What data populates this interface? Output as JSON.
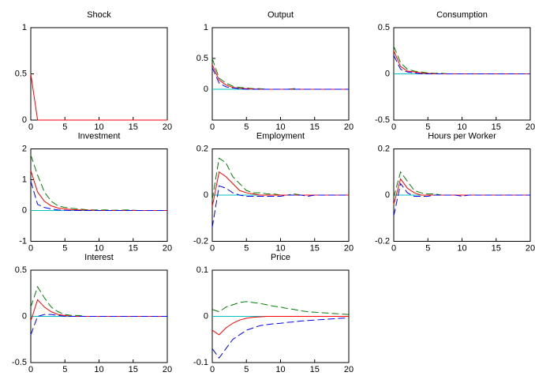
{
  "chart_data": [
    {
      "type": "line",
      "title": "Shock",
      "x": [
        0,
        1,
        2,
        3,
        4,
        5,
        6,
        7,
        8,
        9,
        10,
        11,
        12,
        13,
        14,
        15,
        16,
        17,
        18,
        19,
        20
      ],
      "xlim": [
        0,
        20
      ],
      "xticks": [
        0,
        5,
        10,
        15,
        20
      ],
      "ylim": [
        0,
        1
      ],
      "yticks": [
        0,
        0.5,
        1
      ],
      "series": [
        {
          "color": "#ff0000",
          "dash": false,
          "values": [
            0.5,
            0,
            0,
            0,
            0,
            0,
            0,
            0,
            0,
            0,
            0,
            0,
            0,
            0,
            0,
            0,
            0,
            0,
            0,
            0,
            0
          ]
        }
      ]
    },
    {
      "type": "line",
      "title": "Output",
      "x": [
        0,
        1,
        2,
        3,
        4,
        5,
        6,
        7,
        8,
        9,
        10,
        11,
        12,
        13,
        14,
        15,
        16,
        17,
        18,
        19,
        20
      ],
      "xlim": [
        0,
        20
      ],
      "xticks": [
        0,
        5,
        10,
        15,
        20
      ],
      "ylim": [
        -0.5,
        1
      ],
      "yticks": [
        0,
        0.5,
        1
      ],
      "hline": 0,
      "hline_color": "#00bfbf",
      "series": [
        {
          "color": "#007f00",
          "dash": true,
          "values": [
            0.5,
            0.18,
            0.1,
            0.05,
            0.03,
            0.02,
            0.01,
            0.01,
            0,
            0,
            0,
            0,
            0.01,
            0,
            0,
            0,
            0,
            0,
            0,
            0,
            0
          ]
        },
        {
          "color": "#ff0000",
          "dash": false,
          "values": [
            0.4,
            0.15,
            0.07,
            0.03,
            0.015,
            0.01,
            0.005,
            0,
            0,
            0,
            0,
            0,
            0,
            0,
            0,
            0,
            0,
            0,
            0,
            0,
            0
          ]
        },
        {
          "color": "#0000ff",
          "dash": true,
          "values": [
            0.35,
            0.1,
            0.04,
            0.02,
            0.01,
            0,
            0,
            0,
            0,
            0,
            0,
            0,
            0,
            0,
            0,
            0,
            0,
            0,
            0,
            0,
            0
          ]
        }
      ]
    },
    {
      "type": "line",
      "title": "Consumption",
      "x": [
        0,
        1,
        2,
        3,
        4,
        5,
        6,
        7,
        8,
        9,
        10,
        11,
        12,
        13,
        14,
        15,
        16,
        17,
        18,
        19,
        20
      ],
      "xlim": [
        0,
        20
      ],
      "xticks": [
        0,
        5,
        10,
        15,
        20
      ],
      "ylim": [
        -0.5,
        0.5
      ],
      "yticks": [
        -0.5,
        0,
        0.5
      ],
      "hline": 0,
      "hline_color": "#00bfbf",
      "series": [
        {
          "color": "#007f00",
          "dash": true,
          "values": [
            0.3,
            0.12,
            0.05,
            0.03,
            0.02,
            0.01,
            0.005,
            0.005,
            0,
            0,
            0,
            0,
            0,
            0,
            0,
            0,
            0,
            0,
            0,
            0,
            0
          ]
        },
        {
          "color": "#ff0000",
          "dash": false,
          "values": [
            0.25,
            0.08,
            0.03,
            0.02,
            0.01,
            0.005,
            0,
            0,
            0,
            0,
            0,
            0,
            0,
            0,
            0,
            0,
            0,
            0,
            0,
            0,
            0
          ]
        },
        {
          "color": "#0000ff",
          "dash": true,
          "values": [
            0.2,
            0.05,
            0.02,
            0.01,
            0,
            0,
            0,
            0,
            0,
            0,
            0,
            0,
            0,
            0,
            0,
            0,
            0,
            0,
            0,
            0,
            0
          ]
        }
      ]
    },
    {
      "type": "line",
      "title": "Investment",
      "x": [
        0,
        1,
        2,
        3,
        4,
        5,
        6,
        7,
        8,
        9,
        10,
        11,
        12,
        13,
        14,
        15,
        16,
        17,
        18,
        19,
        20
      ],
      "xlim": [
        0,
        20
      ],
      "xticks": [
        0,
        5,
        10,
        15,
        20
      ],
      "ylim": [
        -1,
        2
      ],
      "yticks": [
        -1,
        0,
        1,
        2
      ],
      "hline": 0,
      "hline_color": "#00bfbf",
      "series": [
        {
          "color": "#007f00",
          "dash": true,
          "values": [
            1.8,
            1.15,
            0.6,
            0.3,
            0.15,
            0.1,
            0.07,
            0.05,
            0.03,
            0.02,
            0.02,
            0.02,
            0.01,
            0.01,
            0.02,
            0.01,
            0,
            0,
            0,
            0,
            0
          ]
        },
        {
          "color": "#ff0000",
          "dash": false,
          "values": [
            1.3,
            0.6,
            0.3,
            0.15,
            0.08,
            0.05,
            0.03,
            0.02,
            0.01,
            0.01,
            0,
            0,
            0,
            0,
            0,
            0,
            0,
            0,
            0,
            0,
            0
          ]
        },
        {
          "color": "#0000ff",
          "dash": true,
          "values": [
            0.95,
            0.2,
            0.1,
            0.05,
            0.02,
            0.01,
            0,
            0,
            0,
            0,
            0,
            0,
            0,
            0,
            0,
            0,
            0,
            0,
            0,
            0,
            0
          ]
        }
      ]
    },
    {
      "type": "line",
      "title": "Employment",
      "x": [
        0,
        1,
        2,
        3,
        4,
        5,
        6,
        7,
        8,
        9,
        10,
        11,
        12,
        13,
        14,
        15,
        16,
        17,
        18,
        19,
        20
      ],
      "xlim": [
        0,
        20
      ],
      "xticks": [
        0,
        5,
        10,
        15,
        20
      ],
      "ylim": [
        -0.2,
        0.2
      ],
      "yticks": [
        -0.2,
        0,
        0.2
      ],
      "hline": 0,
      "hline_color": "#00bfbf",
      "series": [
        {
          "color": "#007f00",
          "dash": true,
          "values": [
            -0.02,
            0.16,
            0.14,
            0.08,
            0.05,
            0.02,
            0.01,
            0.01,
            0.005,
            0.005,
            0,
            0,
            0.005,
            0,
            0,
            0,
            0,
            0,
            0,
            0,
            0
          ]
        },
        {
          "color": "#ff0000",
          "dash": false,
          "values": [
            -0.05,
            0.1,
            0.08,
            0.05,
            0.02,
            0.01,
            0.005,
            0,
            0,
            0,
            0,
            0,
            0,
            0,
            0,
            0,
            0,
            0,
            0,
            0,
            0
          ]
        },
        {
          "color": "#0000ff",
          "dash": true,
          "values": [
            -0.14,
            0.04,
            0.03,
            0.01,
            0,
            -0.005,
            -0.005,
            -0.005,
            -0.005,
            -0.005,
            -0.005,
            0,
            0,
            0,
            -0.005,
            0,
            0,
            0,
            0,
            0,
            0
          ]
        }
      ]
    },
    {
      "type": "line",
      "title": "Hours per Worker",
      "x": [
        0,
        1,
        2,
        3,
        4,
        5,
        6,
        7,
        8,
        9,
        10,
        11,
        12,
        13,
        14,
        15,
        16,
        17,
        18,
        19,
        20
      ],
      "xlim": [
        0,
        20
      ],
      "xticks": [
        0,
        5,
        10,
        15,
        20
      ],
      "ylim": [
        -0.2,
        0.2
      ],
      "yticks": [
        -0.2,
        0,
        0.2
      ],
      "hline": 0,
      "hline_color": "#00bfbf",
      "series": [
        {
          "color": "#007f00",
          "dash": true,
          "values": [
            -0.01,
            0.1,
            0.06,
            0.02,
            0.01,
            0.005,
            0.005,
            0,
            0,
            0,
            0,
            0,
            0,
            0,
            0,
            0,
            0,
            0,
            0,
            0,
            0
          ]
        },
        {
          "color": "#ff0000",
          "dash": false,
          "values": [
            -0.04,
            0.07,
            0.03,
            0.01,
            0,
            0,
            0,
            0,
            0,
            0,
            0,
            0,
            0,
            0,
            0,
            0,
            0,
            0,
            0,
            0,
            0
          ]
        },
        {
          "color": "#0000ff",
          "dash": true,
          "values": [
            -0.09,
            0.05,
            0.01,
            -0.005,
            -0.005,
            -0.005,
            0,
            0,
            0,
            0,
            -0.005,
            0,
            0,
            0,
            0,
            0,
            0,
            0,
            0,
            0,
            0
          ]
        }
      ]
    },
    {
      "type": "line",
      "title": "Interest",
      "x": [
        0,
        1,
        2,
        3,
        4,
        5,
        6,
        7,
        8,
        9,
        10,
        11,
        12,
        13,
        14,
        15,
        16,
        17,
        18,
        19,
        20
      ],
      "xlim": [
        0,
        20
      ],
      "xticks": [
        0,
        5,
        10,
        15,
        20
      ],
      "ylim": [
        -0.5,
        0.5
      ],
      "yticks": [
        -0.5,
        0,
        0.5
      ],
      "hline": 0,
      "hline_color": "#00bfbf",
      "series": [
        {
          "color": "#007f00",
          "dash": true,
          "values": [
            0.1,
            0.32,
            0.2,
            0.1,
            0.05,
            0.02,
            0.01,
            0.01,
            0,
            0,
            0,
            0,
            0,
            0,
            0,
            0,
            0,
            0,
            0,
            0,
            0
          ]
        },
        {
          "color": "#ff0000",
          "dash": false,
          "values": [
            -0.05,
            0.18,
            0.1,
            0.05,
            0.02,
            0.01,
            0,
            0,
            0,
            0,
            0,
            0,
            0,
            0,
            0,
            0,
            0,
            0,
            0,
            0,
            0
          ]
        },
        {
          "color": "#0000ff",
          "dash": true,
          "values": [
            -0.2,
            0,
            0.02,
            0.02,
            0.01,
            0,
            0,
            0,
            0,
            0,
            0,
            0,
            0,
            0,
            0,
            0,
            0,
            0,
            0,
            0,
            0
          ]
        }
      ]
    },
    {
      "type": "line",
      "title": "Price",
      "x": [
        0,
        1,
        2,
        3,
        4,
        5,
        6,
        7,
        8,
        9,
        10,
        11,
        12,
        13,
        14,
        15,
        16,
        17,
        18,
        19,
        20
      ],
      "xlim": [
        0,
        20
      ],
      "xticks": [
        0,
        5,
        10,
        15,
        20
      ],
      "ylim": [
        -0.1,
        0.1
      ],
      "yticks": [
        -0.1,
        0,
        0.1
      ],
      "hline": 0,
      "hline_color": "#00bfbf",
      "series": [
        {
          "color": "#007f00",
          "dash": true,
          "values": [
            0.015,
            0.01,
            0.02,
            0.025,
            0.03,
            0.032,
            0.03,
            0.028,
            0.025,
            0.022,
            0.02,
            0.017,
            0.015,
            0.012,
            0.01,
            0.009,
            0.008,
            0.007,
            0.006,
            0.005,
            0.004
          ]
        },
        {
          "color": "#ff0000",
          "dash": false,
          "values": [
            -0.03,
            -0.04,
            -0.025,
            -0.015,
            -0.008,
            -0.004,
            -0.002,
            -0.001,
            0,
            0,
            0,
            0,
            0,
            0,
            0,
            0,
            0,
            0,
            0,
            0,
            0
          ]
        },
        {
          "color": "#0000ff",
          "dash": true,
          "values": [
            -0.07,
            -0.09,
            -0.07,
            -0.05,
            -0.04,
            -0.03,
            -0.025,
            -0.02,
            -0.018,
            -0.016,
            -0.015,
            -0.013,
            -0.012,
            -0.01,
            -0.009,
            -0.008,
            -0.007,
            -0.006,
            -0.005,
            -0.004,
            -0.003
          ]
        }
      ]
    }
  ]
}
